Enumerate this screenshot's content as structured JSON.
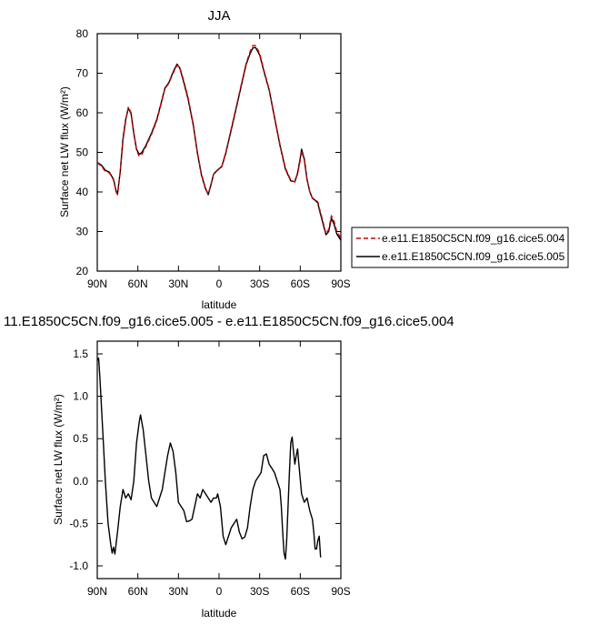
{
  "chart_data": [
    {
      "type": "line",
      "title": "JJA",
      "xlabel": "latitude",
      "ylabel": "Surface net LW flux (W/m²)",
      "xlim": [
        90,
        -90
      ],
      "ylim": [
        20,
        80
      ],
      "x_ticks": [
        90,
        60,
        30,
        0,
        -30,
        -60,
        -90
      ],
      "x_tick_labels": [
        "90N",
        "60N",
        "30N",
        "0",
        "30S",
        "60S",
        "90S"
      ],
      "y_ticks": [
        20,
        30,
        40,
        50,
        60,
        70,
        80
      ],
      "y_tick_labels": [
        "20",
        "30",
        "40",
        "50",
        "60",
        "70",
        "80"
      ],
      "grid": false,
      "legend": "right",
      "series": [
        {
          "name": "e.e11.E1850C5CN.f09_g16.cice5.004",
          "color": "#cc0000",
          "style": "dashed",
          "points": [
            [
              90,
              47.4
            ],
            [
              87,
              46.5
            ],
            [
              84,
              45.2
            ],
            [
              81,
              44.8
            ],
            [
              78,
              43.0
            ],
            [
              76,
              40.0
            ],
            [
              75,
              39.3
            ],
            [
              73,
              45.0
            ],
            [
              71,
              53.0
            ],
            [
              69,
              58.0
            ],
            [
              67,
              61.5
            ],
            [
              65,
              60.0
            ],
            [
              63,
              55.0
            ],
            [
              61,
              50.5
            ],
            [
              59,
              49.0
            ],
            [
              57,
              49.5
            ],
            [
              54,
              51.5
            ],
            [
              50,
              54.5
            ],
            [
              46,
              58.0
            ],
            [
              43,
              62.0
            ],
            [
              40,
              66.0
            ],
            [
              37,
              67.5
            ],
            [
              34,
              70.0
            ],
            [
              31,
              72.0
            ],
            [
              29,
              71.5
            ],
            [
              26,
              68.0
            ],
            [
              23,
              64.0
            ],
            [
              19,
              57.0
            ],
            [
              16,
              50.0
            ],
            [
              13,
              44.5
            ],
            [
              10,
              41.0
            ],
            [
              8,
              39.5
            ],
            [
              6,
              42.0
            ],
            [
              4,
              44.5
            ],
            [
              1,
              45.5
            ],
            [
              -2,
              46.5
            ],
            [
              -5,
              50.0
            ],
            [
              -9,
              56.0
            ],
            [
              -13,
              62.0
            ],
            [
              -17,
              68.0
            ],
            [
              -20,
              72.5
            ],
            [
              -23,
              75.5
            ],
            [
              -25,
              77.0
            ],
            [
              -27,
              77.0
            ],
            [
              -30,
              75.0
            ],
            [
              -33,
              71.0
            ],
            [
              -37,
              66.0
            ],
            [
              -41,
              59.0
            ],
            [
              -45,
              52.0
            ],
            [
              -49,
              46.0
            ],
            [
              -53,
              43.0
            ],
            [
              -56,
              42.5
            ],
            [
              -58,
              44.5
            ],
            [
              -60,
              48.0
            ],
            [
              -61,
              50.3
            ],
            [
              -63,
              48.0
            ],
            [
              -65,
              43.0
            ],
            [
              -67,
              40.0
            ],
            [
              -69,
              38.5
            ],
            [
              -71,
              38.0
            ],
            [
              -73,
              37.5
            ],
            [
              -74,
              36.0
            ],
            [
              -76,
              33.5
            ],
            [
              -79,
              29.5
            ],
            [
              -81,
              30.5
            ],
            [
              -83,
              34.0
            ],
            [
              -85,
              32.5
            ],
            [
              -87,
              30.0
            ],
            [
              -90,
              28.3
            ]
          ]
        },
        {
          "name": "e.e11.E1850C5CN.f09_g16.cice5.005",
          "color": "#000000",
          "style": "solid",
          "points": [
            [
              90,
              47.5
            ],
            [
              87,
              46.8
            ],
            [
              84,
              45.5
            ],
            [
              81,
              45.0
            ],
            [
              78,
              43.2
            ],
            [
              76,
              40.2
            ],
            [
              75,
              39.5
            ],
            [
              73,
              45.2
            ],
            [
              71,
              53.5
            ],
            [
              69,
              58.3
            ],
            [
              67,
              61.2
            ],
            [
              65,
              59.8
            ],
            [
              63,
              54.8
            ],
            [
              61,
              50.8
            ],
            [
              59,
              49.5
            ],
            [
              57,
              50.0
            ],
            [
              54,
              51.8
            ],
            [
              50,
              54.8
            ],
            [
              46,
              58.3
            ],
            [
              43,
              62.2
            ],
            [
              40,
              66.2
            ],
            [
              37,
              67.7
            ],
            [
              34,
              70.3
            ],
            [
              31,
              72.3
            ],
            [
              29,
              71.3
            ],
            [
              26,
              67.6
            ],
            [
              23,
              63.6
            ],
            [
              19,
              56.8
            ],
            [
              16,
              49.8
            ],
            [
              13,
              44.3
            ],
            [
              10,
              40.8
            ],
            [
              8,
              39.3
            ],
            [
              6,
              41.8
            ],
            [
              4,
              44.5
            ],
            [
              1,
              45.6
            ],
            [
              -2,
              46.4
            ],
            [
              -5,
              49.8
            ],
            [
              -9,
              55.7
            ],
            [
              -13,
              61.7
            ],
            [
              -17,
              67.7
            ],
            [
              -20,
              72.2
            ],
            [
              -23,
              75.0
            ],
            [
              -25,
              76.4
            ],
            [
              -27,
              76.5
            ],
            [
              -30,
              74.6
            ],
            [
              -33,
              70.7
            ],
            [
              -37,
              65.8
            ],
            [
              -41,
              58.8
            ],
            [
              -45,
              51.8
            ],
            [
              -49,
              45.8
            ],
            [
              -53,
              42.8
            ],
            [
              -56,
              42.6
            ],
            [
              -58,
              44.8
            ],
            [
              -60,
              48.5
            ],
            [
              -61,
              50.8
            ],
            [
              -63,
              48.3
            ],
            [
              -65,
              43.2
            ],
            [
              -67,
              40.1
            ],
            [
              -69,
              38.4
            ],
            [
              -71,
              37.9
            ],
            [
              -73,
              37.2
            ],
            [
              -74,
              35.6
            ],
            [
              -76,
              33.0
            ],
            [
              -79,
              29.2
            ],
            [
              -81,
              30.0
            ],
            [
              -83,
              33.4
            ],
            [
              -85,
              31.8
            ],
            [
              -87,
              29.4
            ],
            [
              -90,
              27.8
            ]
          ]
        }
      ]
    },
    {
      "type": "line",
      "title": "11.E1850C5CN.f09_g16.cice5.005 - e.e11.E1850C5CN.f09_g16.cice5.004",
      "xlabel": "latitude",
      "ylabel": "Surface net LW flux (W/m²)",
      "xlim": [
        90,
        -90
      ],
      "ylim": [
        -1.15,
        1.65
      ],
      "x_ticks": [
        90,
        60,
        30,
        0,
        -30,
        -60,
        -90
      ],
      "x_tick_labels": [
        "90N",
        "60N",
        "30N",
        "0",
        "30S",
        "60S",
        "90S"
      ],
      "y_ticks": [
        -1.0,
        -0.5,
        0.0,
        0.5,
        1.0,
        1.5
      ],
      "y_tick_labels": [
        "-1.0",
        "-0.5",
        "0.0",
        "0.5",
        "1.0",
        "1.5"
      ],
      "grid": false,
      "series": [
        {
          "color": "#000000",
          "style": "solid",
          "points": [
            [
              90,
              1.42
            ],
            [
              89,
              1.45
            ],
            [
              88,
              1.2
            ],
            [
              86,
              0.6
            ],
            [
              84,
              0.0
            ],
            [
              82,
              -0.5
            ],
            [
              80,
              -0.75
            ],
            [
              79,
              -0.85
            ],
            [
              78,
              -0.78
            ],
            [
              77,
              -0.86
            ],
            [
              75,
              -0.6
            ],
            [
              73,
              -0.3
            ],
            [
              71,
              -0.1
            ],
            [
              69,
              -0.2
            ],
            [
              67,
              -0.15
            ],
            [
              65,
              -0.22
            ],
            [
              63,
              0.0
            ],
            [
              61,
              0.45
            ],
            [
              59,
              0.7
            ],
            [
              58,
              0.78
            ],
            [
              56,
              0.6
            ],
            [
              54,
              0.3
            ],
            [
              52,
              0.0
            ],
            [
              50,
              -0.2
            ],
            [
              48,
              -0.25
            ],
            [
              46,
              -0.3
            ],
            [
              44,
              -0.2
            ],
            [
              42,
              -0.1
            ],
            [
              40,
              0.1
            ],
            [
              38,
              0.3
            ],
            [
              36,
              0.45
            ],
            [
              34,
              0.35
            ],
            [
              32,
              0.1
            ],
            [
              30,
              -0.25
            ],
            [
              28,
              -0.3
            ],
            [
              26,
              -0.35
            ],
            [
              24,
              -0.48
            ],
            [
              22,
              -0.47
            ],
            [
              20,
              -0.45
            ],
            [
              18,
              -0.3
            ],
            [
              16,
              -0.15
            ],
            [
              14,
              -0.2
            ],
            [
              12,
              -0.1
            ],
            [
              10,
              -0.15
            ],
            [
              8,
              -0.2
            ],
            [
              6,
              -0.25
            ],
            [
              4,
              -0.2
            ],
            [
              2,
              -0.2
            ],
            [
              1,
              -0.15
            ],
            [
              -1,
              -0.3
            ],
            [
              -3,
              -0.65
            ],
            [
              -5,
              -0.75
            ],
            [
              -7,
              -0.65
            ],
            [
              -9,
              -0.55
            ],
            [
              -11,
              -0.5
            ],
            [
              -13,
              -0.45
            ],
            [
              -15,
              -0.6
            ],
            [
              -17,
              -0.68
            ],
            [
              -19,
              -0.66
            ],
            [
              -21,
              -0.55
            ],
            [
              -23,
              -0.3
            ],
            [
              -25,
              -0.1
            ],
            [
              -27,
              0.0
            ],
            [
              -29,
              0.05
            ],
            [
              -31,
              0.1
            ],
            [
              -33,
              0.3
            ],
            [
              -35,
              0.32
            ],
            [
              -37,
              0.2
            ],
            [
              -39,
              0.15
            ],
            [
              -41,
              0.1
            ],
            [
              -43,
              0.0
            ],
            [
              -45,
              -0.1
            ],
            [
              -46,
              -0.3
            ],
            [
              -47,
              -0.6
            ],
            [
              -48,
              -0.85
            ],
            [
              -49,
              -0.92
            ],
            [
              -50,
              -0.7
            ],
            [
              -51,
              -0.3
            ],
            [
              -52,
              0.1
            ],
            [
              -53,
              0.45
            ],
            [
              -54,
              0.52
            ],
            [
              -55,
              0.35
            ],
            [
              -56,
              0.2
            ],
            [
              -57,
              0.3
            ],
            [
              -58,
              0.38
            ],
            [
              -59,
              0.2
            ],
            [
              -61,
              -0.15
            ],
            [
              -63,
              -0.25
            ],
            [
              -65,
              -0.2
            ],
            [
              -67,
              -0.35
            ],
            [
              -69,
              -0.45
            ],
            [
              -70,
              -0.6
            ],
            [
              -71,
              -0.8
            ],
            [
              -72,
              -0.8
            ],
            [
              -73,
              -0.7
            ],
            [
              -74,
              -0.65
            ],
            [
              -75,
              -0.9
            ]
          ]
        }
      ]
    }
  ]
}
